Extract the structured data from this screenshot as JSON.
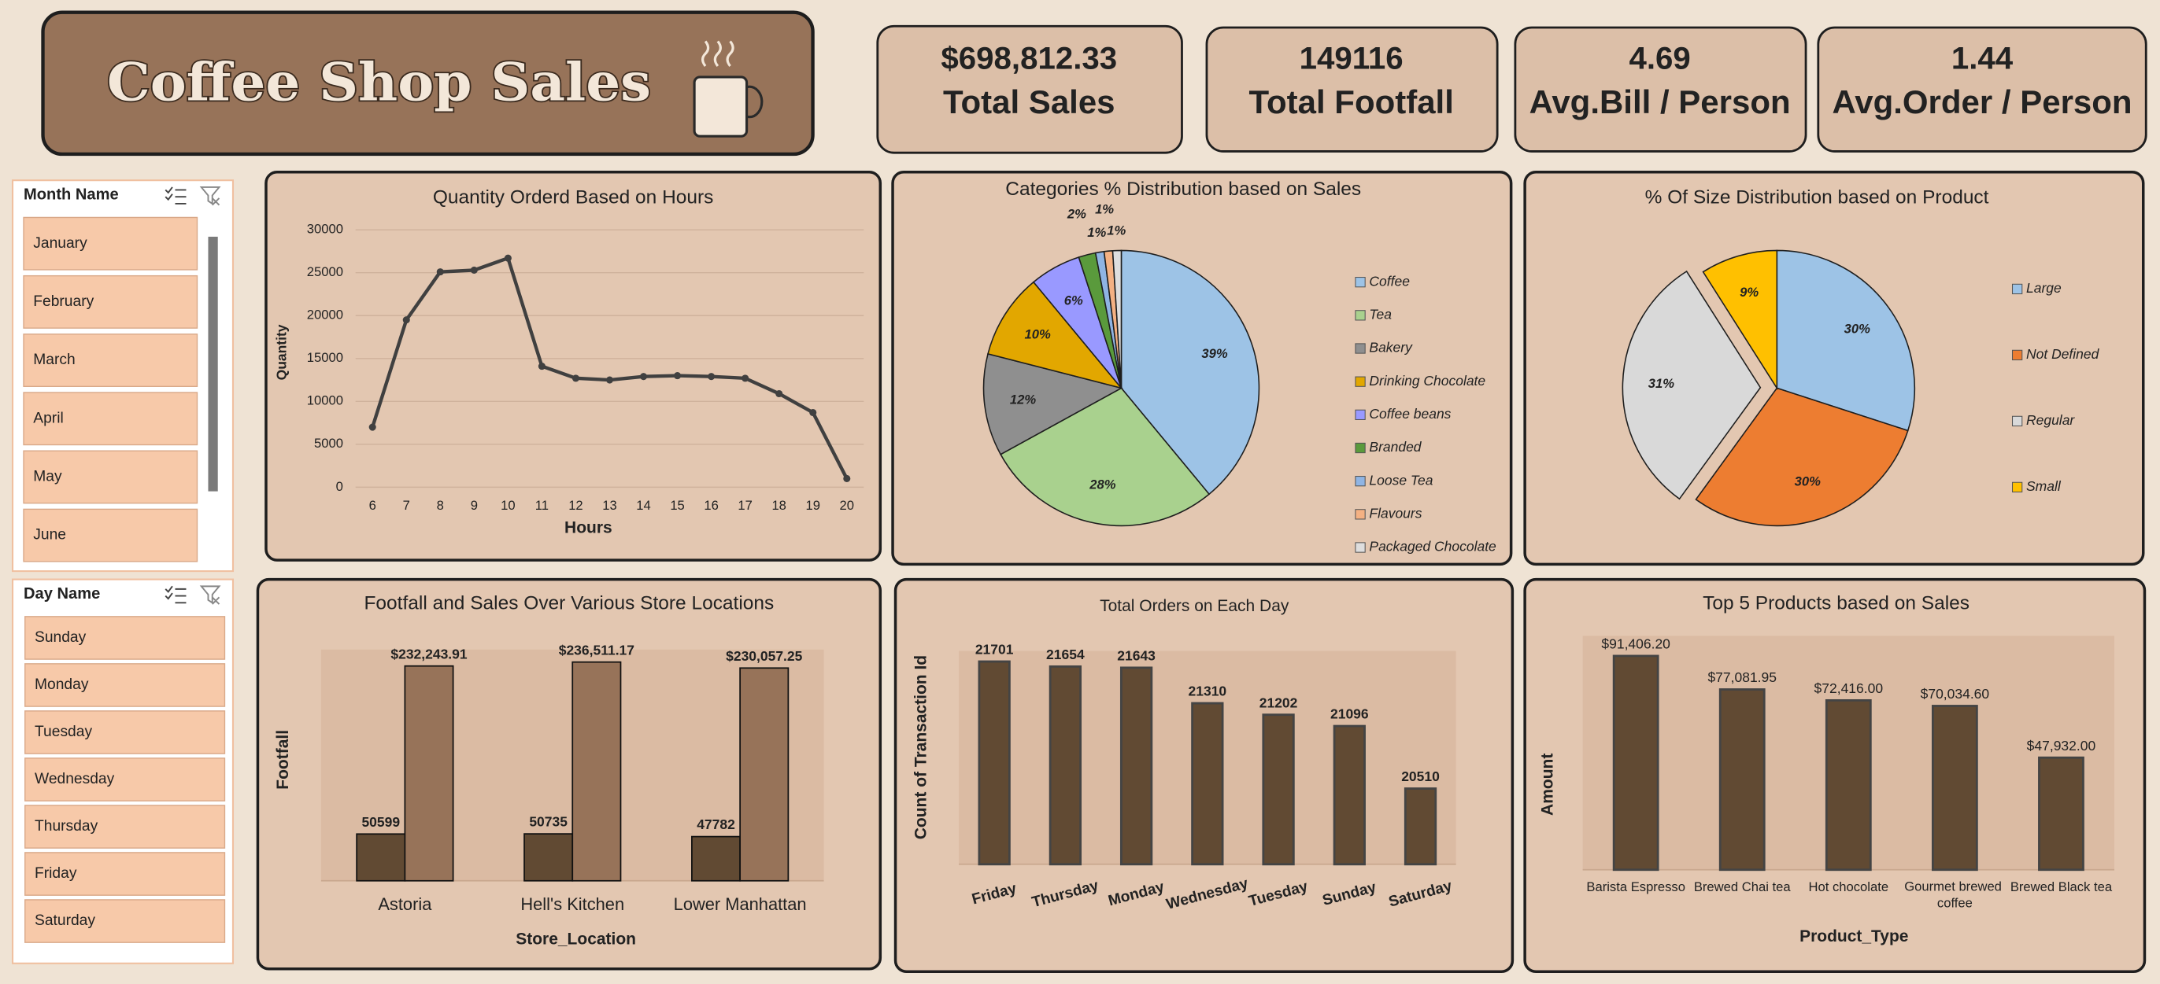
{
  "header": {
    "title": "Coffee Shop Sales"
  },
  "kpis": [
    {
      "value": "$698,812.33",
      "label": "Total Sales"
    },
    {
      "value": "149116",
      "label": "Total Footfall"
    },
    {
      "value": "4.69",
      "label": "Avg.Bill / Person"
    },
    {
      "value": "1.44",
      "label": "Avg.Order / Person"
    }
  ],
  "slicers": [
    {
      "title": "Month Name",
      "items": [
        "January",
        "February",
        "March",
        "April",
        "May",
        "June"
      ]
    },
    {
      "title": "Day Name",
      "items": [
        "Sunday",
        "Monday",
        "Tuesday",
        "Wednesday",
        "Thursday",
        "Friday",
        "Saturday"
      ]
    }
  ],
  "chart_data": [
    {
      "type": "line",
      "title": "Quantity Orderd Based on Hours",
      "x_label": "Hours",
      "y_label": "Quantity",
      "x": [
        6,
        7,
        8,
        9,
        10,
        11,
        12,
        13,
        14,
        15,
        16,
        17,
        18,
        19,
        20
      ],
      "values": [
        7000,
        19500,
        25100,
        25300,
        26700,
        14100,
        12700,
        12500,
        12900,
        13000,
        12900,
        12700,
        10900,
        8700,
        1000
      ],
      "color": "#404040",
      "xlim": [
        5.5,
        20.5
      ],
      "xticks": [
        6,
        7,
        8,
        9,
        10,
        11,
        12,
        13,
        14,
        15,
        16,
        17,
        18,
        19,
        20
      ],
      "ylim": [
        0,
        30000
      ],
      "yticks": [
        0,
        5000,
        10000,
        15000,
        20000,
        25000,
        30000
      ],
      "grid": true
    },
    {
      "type": "pie",
      "title": "Categories % Distribution based on Sales",
      "categories": [
        "Coffee",
        "Tea",
        "Bakery",
        "Drinking Chocolate",
        "Coffee beans",
        "Branded",
        "Loose Tea",
        "Flavours",
        "Packaged Chocolate"
      ],
      "values": [
        39,
        28,
        12,
        10,
        6,
        2,
        1,
        1,
        1
      ],
      "value_labels": [
        "39%",
        "28%",
        "12%",
        "10%",
        "6%",
        "2%",
        "1%",
        "1%",
        "1%"
      ],
      "colors": [
        "#9dc3e6",
        "#a9d18e",
        "#8f8f8f",
        "#e2a700",
        "#9999ff",
        "#5a9a3c",
        "#8fb4e3",
        "#f4b183",
        "#dedede"
      ],
      "legend": "right"
    },
    {
      "type": "pie",
      "title": "% Of Size Distribution based on Product",
      "categories": [
        "Large",
        "Not Defined",
        "Regular",
        "Small"
      ],
      "values": [
        30,
        30,
        31,
        9
      ],
      "value_labels": [
        "30%",
        "30%",
        "31%",
        "9%"
      ],
      "colors": [
        "#9dc3e6",
        "#ed7d31",
        "#d9d9d9",
        "#ffc000"
      ],
      "exploded": [
        false,
        false,
        true,
        false
      ],
      "legend": "right"
    },
    {
      "type": "bar",
      "title": "Footfall and Sales Over Various Store Locations",
      "x_label": "Store_Location",
      "y_label": "Footfall",
      "categories": [
        "Astoria",
        "Hell's Kitchen",
        "Lower Manhattan"
      ],
      "series": [
        {
          "name": "Footfall",
          "color": "#614a33",
          "values": [
            50599,
            50735,
            47782
          ]
        },
        {
          "name": "Sales",
          "color": "#977359",
          "values": [
            232243.91,
            236511.17,
            230057.25
          ],
          "value_labels": [
            "$232,243.91",
            "$236,511.17",
            "$230,057.25"
          ]
        }
      ],
      "ylim": [
        0,
        250000
      ]
    },
    {
      "type": "bar",
      "title": "Total Orders on Each Day",
      "y_label": "Count of Transaction Id",
      "categories": [
        "Friday",
        "Thursday",
        "Monday",
        "Wednesday",
        "Tuesday",
        "Sunday",
        "Saturday"
      ],
      "values": [
        21701,
        21654,
        21643,
        21310,
        21202,
        21096,
        20510
      ],
      "color": "#614a33",
      "ylim": [
        19800,
        21800
      ]
    },
    {
      "type": "bar",
      "title": "Top 5 Products  based on Sales",
      "x_label": "Product_Type",
      "y_label": "Amount",
      "categories": [
        "Barista Espresso",
        "Brewed Chai tea",
        "Hot chocolate",
        "Gourmet brewed coffee",
        "Brewed Black tea"
      ],
      "values": [
        91406.2,
        77081.95,
        72416.0,
        70034.6,
        47932.0
      ],
      "value_labels": [
        "$91,406.20",
        "$77,081.95",
        "$72,416.00",
        "$70,034.60",
        "$47,932.00"
      ],
      "color": "#614a33",
      "ylim": [
        0,
        100000
      ]
    }
  ]
}
